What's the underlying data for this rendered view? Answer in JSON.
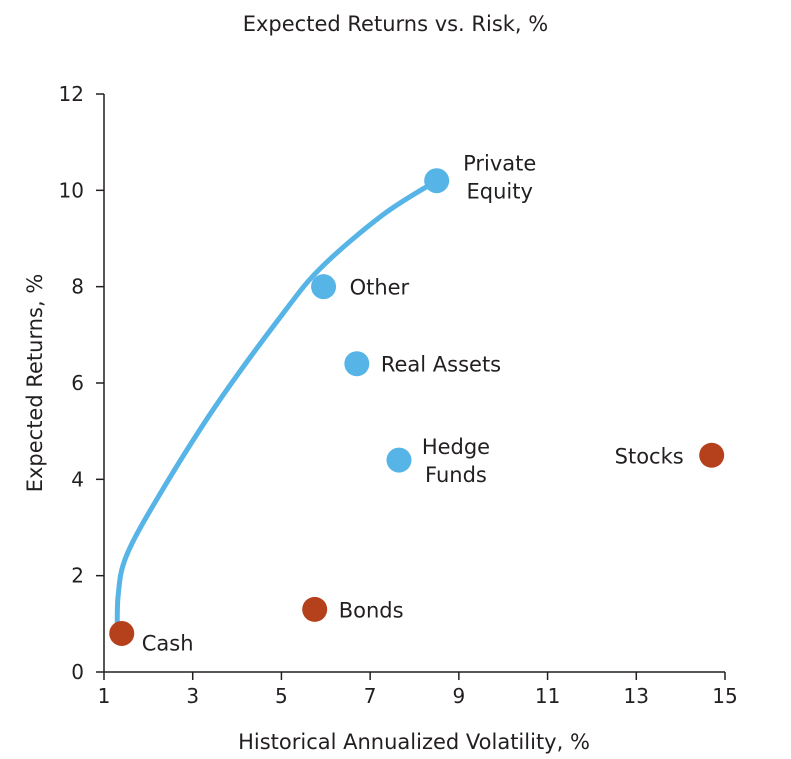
{
  "chart_data": {
    "type": "scatter",
    "title": "Expected Returns vs. Risk, %",
    "xlabel": "Historical Annualized Volatility, %",
    "ylabel": "Expected Returns, %",
    "xlim": [
      1,
      15
    ],
    "ylim": [
      0,
      12
    ],
    "xticks": [
      1,
      3,
      5,
      7,
      9,
      11,
      13,
      15
    ],
    "yticks": [
      0,
      2,
      4,
      6,
      8,
      10,
      12
    ],
    "grid": false,
    "colors": {
      "alternatives": "#57b4e6",
      "traditional": "#b5401c",
      "frontier": "#57b4e6",
      "axis": "#231f20"
    },
    "points": [
      {
        "label": [
          "Private",
          "Equity"
        ],
        "x": 8.5,
        "y": 10.2,
        "group": "alternatives"
      },
      {
        "label": [
          "Other"
        ],
        "x": 5.95,
        "y": 8.0,
        "group": "alternatives"
      },
      {
        "label": [
          "Real Assets"
        ],
        "x": 6.7,
        "y": 6.4,
        "group": "alternatives"
      },
      {
        "label": [
          "Hedge",
          "Funds"
        ],
        "x": 7.65,
        "y": 4.4,
        "group": "alternatives"
      },
      {
        "label": [
          "Stocks"
        ],
        "x": 14.7,
        "y": 4.5,
        "group": "traditional"
      },
      {
        "label": [
          "Bonds"
        ],
        "x": 5.75,
        "y": 1.3,
        "group": "traditional"
      },
      {
        "label": [
          "Cash"
        ],
        "x": 1.4,
        "y": 0.8,
        "group": "traditional"
      }
    ],
    "frontier": [
      {
        "x": 1.3,
        "y": 0.8
      },
      {
        "x": 1.32,
        "y": 1.6
      },
      {
        "x": 1.5,
        "y": 2.4
      },
      {
        "x": 2.2,
        "y": 3.6
      },
      {
        "x": 3.5,
        "y": 5.5
      },
      {
        "x": 5.0,
        "y": 7.4
      },
      {
        "x": 5.9,
        "y": 8.4
      },
      {
        "x": 7.3,
        "y": 9.5
      },
      {
        "x": 8.5,
        "y": 10.2
      }
    ]
  }
}
